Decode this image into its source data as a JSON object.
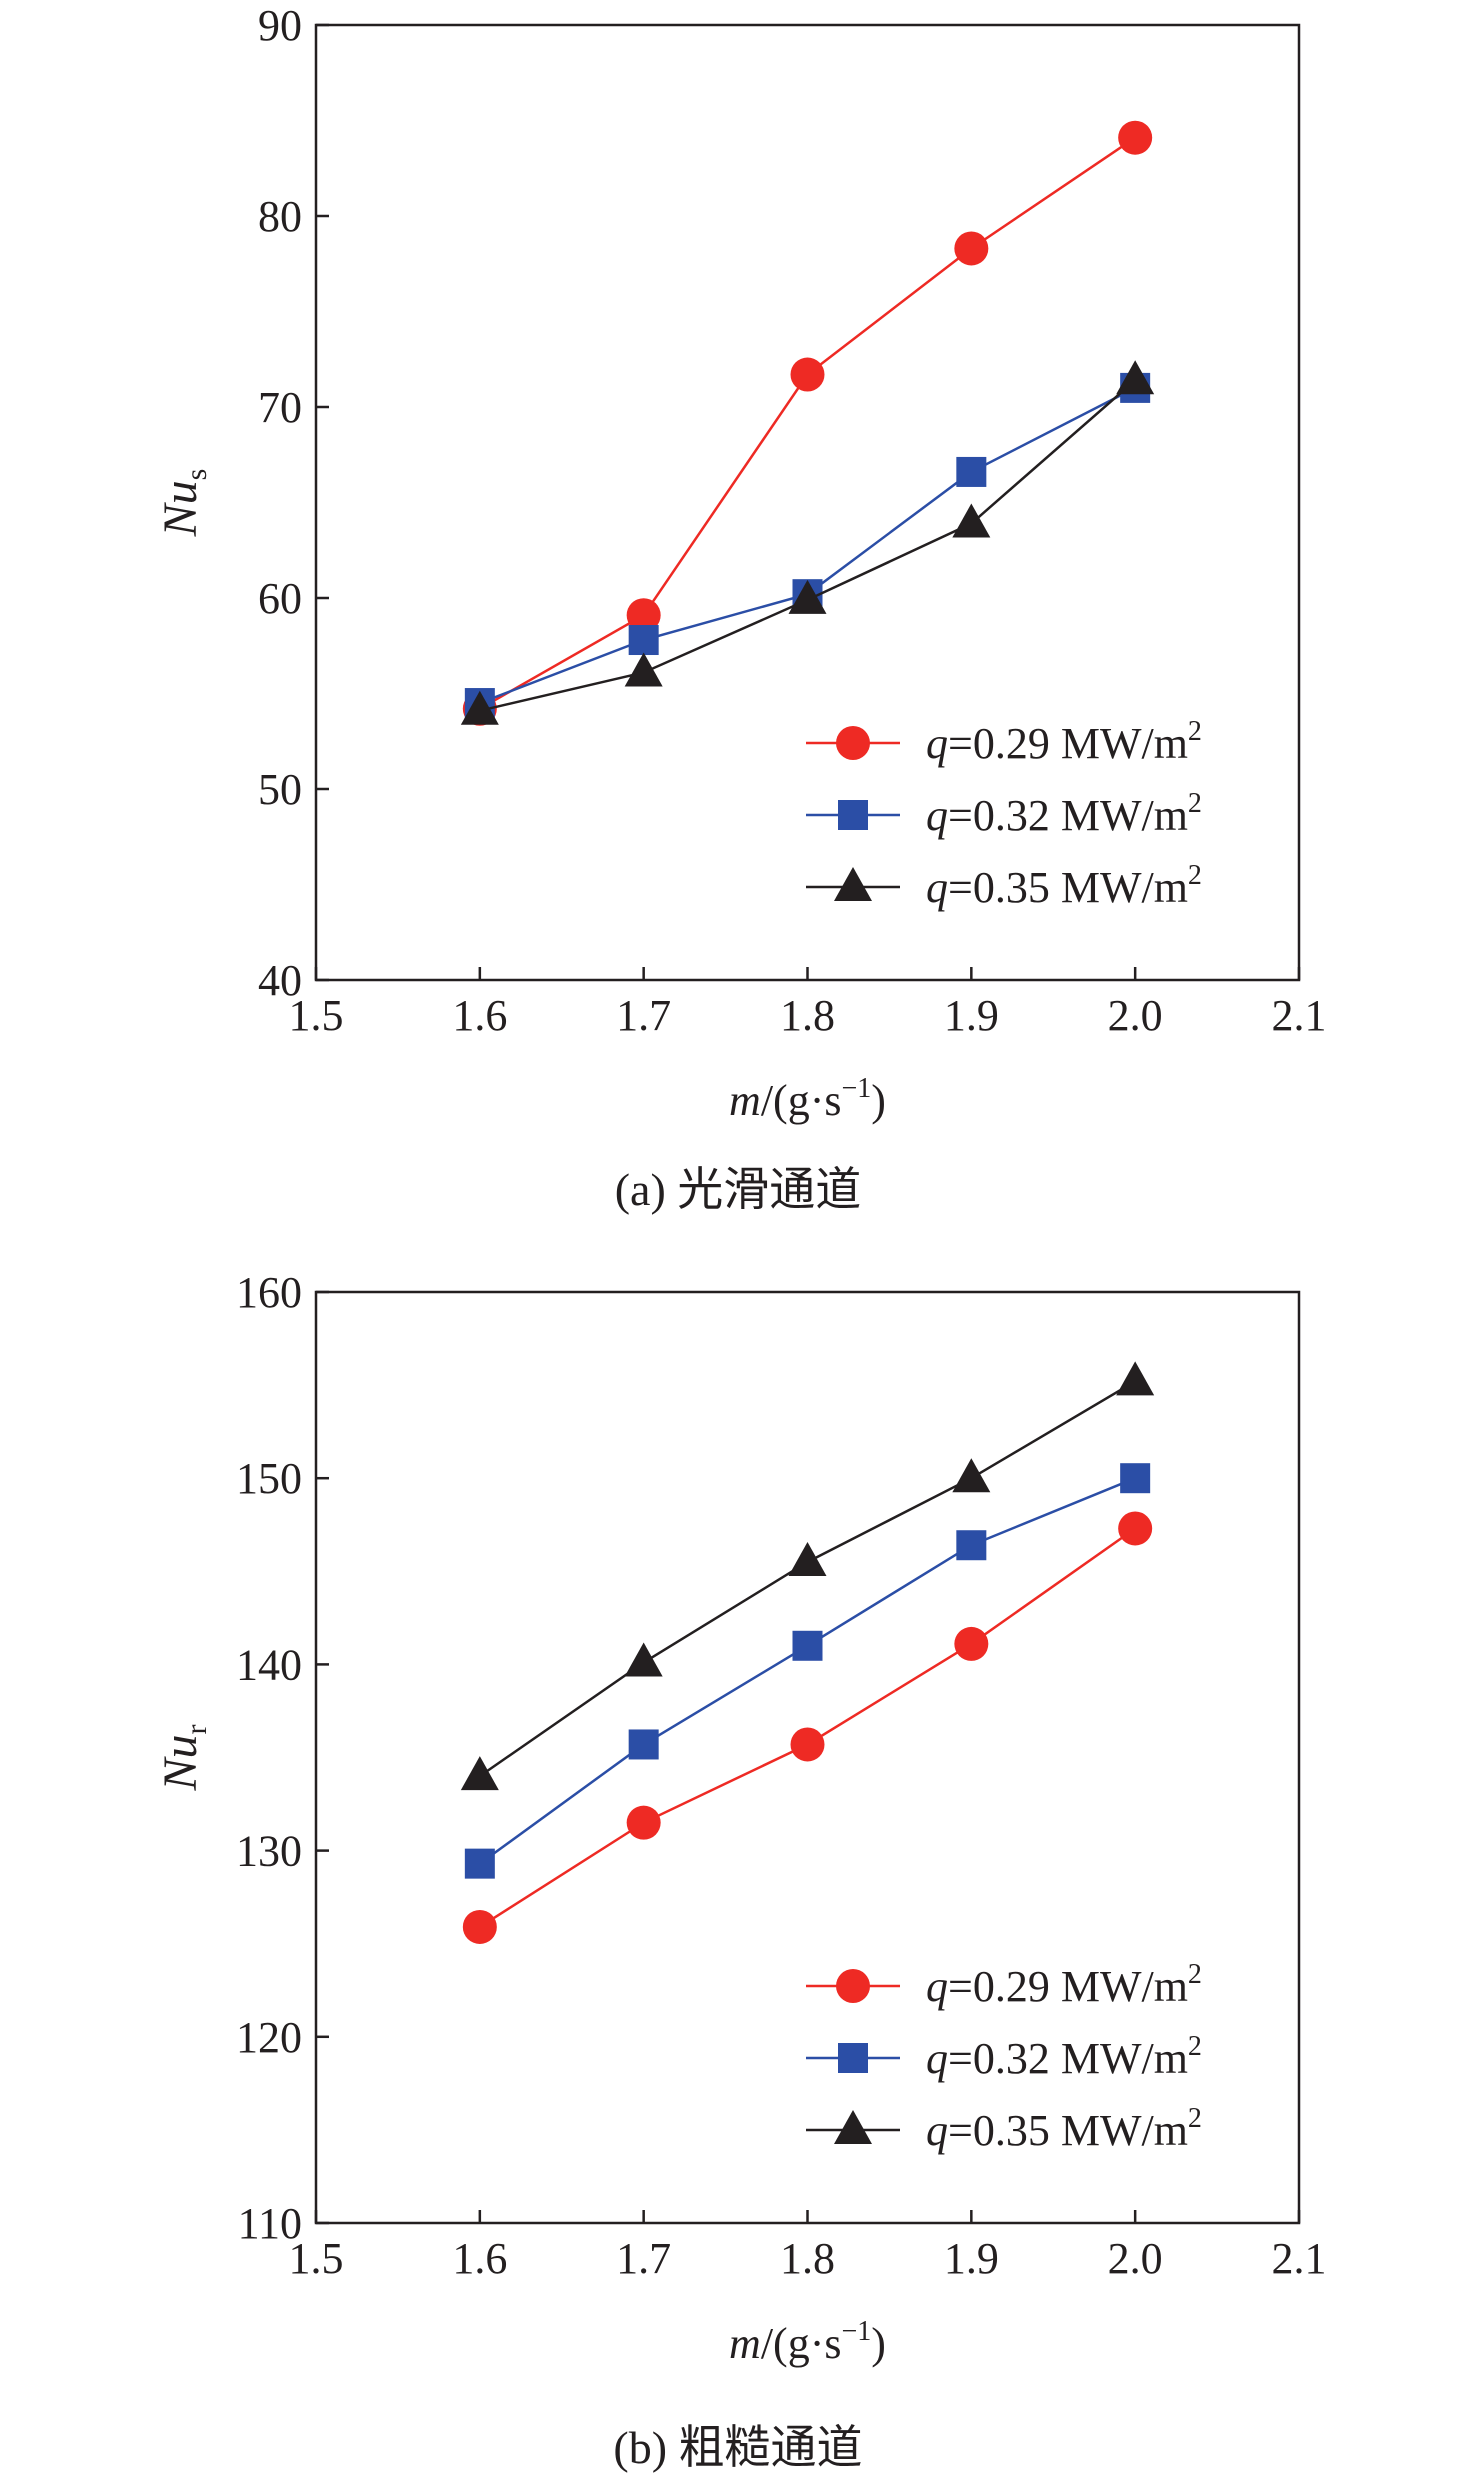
{
  "chart_data": [
    {
      "type": "line",
      "caption": "(a) 光滑通道",
      "xlabel": {
        "main": "m",
        "rest": "/(g·s",
        "sup": "−1",
        "close": ")"
      },
      "ylabel": {
        "main": "Nu",
        "sub": "s"
      },
      "xlim": [
        1.5,
        2.1
      ],
      "ylim": [
        40,
        90
      ],
      "xticks": [
        1.5,
        1.6,
        1.7,
        1.8,
        1.9,
        2.0,
        2.1
      ],
      "xtick_labels": [
        "1.5",
        "1.6",
        "1.7",
        "1.8",
        "1.9",
        "2.0",
        "2.1"
      ],
      "yticks": [
        40,
        50,
        60,
        70,
        80,
        90
      ],
      "ytick_labels": [
        "40",
        "50",
        "60",
        "70",
        "80",
        "90"
      ],
      "grid": false,
      "legend_position": "bottom-right",
      "x": [
        1.6,
        1.7,
        1.8,
        1.9,
        2.0
      ],
      "series": [
        {
          "name": "q=0.29 MW/m²",
          "legend": {
            "var": "q",
            "val": "=0.29 MW/m",
            "sup": "2"
          },
          "color": "#ee2a24",
          "marker": "circle",
          "values": [
            54.2,
            59.1,
            71.7,
            78.3,
            84.1
          ]
        },
        {
          "name": "q=0.32 MW/m²",
          "legend": {
            "var": "q",
            "val": "=0.32 MW/m",
            "sup": "2"
          },
          "color": "#2b4ea6",
          "marker": "square",
          "values": [
            54.5,
            57.8,
            60.2,
            66.6,
            71.0
          ]
        },
        {
          "name": "q=0.35 MW/m²",
          "legend": {
            "var": "q",
            "val": "=0.35 MW/m",
            "sup": "2"
          },
          "color": "#231f20",
          "marker": "triangle",
          "values": [
            54.1,
            56.1,
            59.9,
            63.9,
            71.4
          ]
        }
      ]
    },
    {
      "type": "line",
      "caption": "(b) 粗糙通道",
      "xlabel": {
        "main": "m",
        "rest": "/(g·s",
        "sup": "−1",
        "close": ")"
      },
      "ylabel": {
        "main": "Nu",
        "sub": "r"
      },
      "xlim": [
        1.5,
        2.1
      ],
      "ylim": [
        110,
        160
      ],
      "xticks": [
        1.5,
        1.6,
        1.7,
        1.8,
        1.9,
        2.0,
        2.1
      ],
      "xtick_labels": [
        "1.5",
        "1.6",
        "1.7",
        "1.8",
        "1.9",
        "2.0",
        "2.1"
      ],
      "yticks": [
        110,
        120,
        130,
        140,
        150,
        160
      ],
      "ytick_labels": [
        "110",
        "120",
        "130",
        "140",
        "150",
        "160"
      ],
      "grid": false,
      "legend_position": "bottom-right",
      "x": [
        1.6,
        1.7,
        1.8,
        1.9,
        2.0
      ],
      "series": [
        {
          "name": "q=0.29 MW/m²",
          "legend": {
            "var": "q",
            "val": "=0.29 MW/m",
            "sup": "2"
          },
          "color": "#ee2a24",
          "marker": "circle",
          "values": [
            125.9,
            131.5,
            135.7,
            141.1,
            147.3
          ]
        },
        {
          "name": "q=0.32 MW/m²",
          "legend": {
            "var": "q",
            "val": "=0.32 MW/m",
            "sup": "2"
          },
          "color": "#2b4ea6",
          "marker": "square",
          "values": [
            129.3,
            135.7,
            141.0,
            146.4,
            150.0
          ]
        },
        {
          "name": "q=0.35 MW/m²",
          "legend": {
            "var": "q",
            "val": "=0.35 MW/m",
            "sup": "2"
          },
          "color": "#231f20",
          "marker": "triangle",
          "values": [
            134.0,
            140.1,
            145.5,
            150.0,
            155.2
          ]
        }
      ]
    }
  ]
}
